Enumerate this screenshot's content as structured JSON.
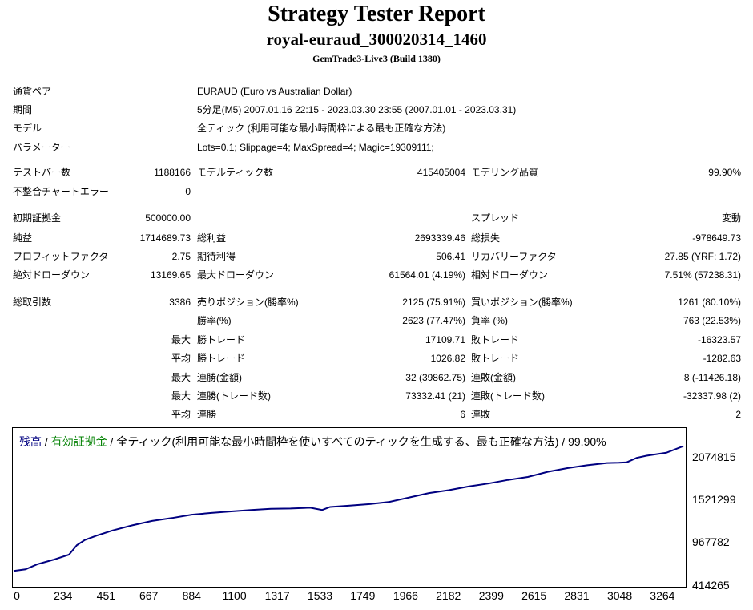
{
  "header": {
    "title": "Strategy Tester Report",
    "subtitle": "royal-euraud_300020314_1460",
    "build": "GemTrade3-Live3 (Build 1380)"
  },
  "info": [
    {
      "label": "通貨ペア",
      "value": "EURAUD (Euro vs Australian Dollar)"
    },
    {
      "label": "期間",
      "value": "5分足(M5) 2007.01.16 22:15 - 2023.03.30 23:55 (2007.01.01 - 2023.03.31)"
    },
    {
      "label": "モデル",
      "value": "全ティック (利用可能な最小時間枠による最も正確な方法)"
    },
    {
      "label": "パラメーター",
      "value": "Lots=0.1; Slippage=4; MaxSpread=4; Magic=19309111;"
    }
  ],
  "stats": {
    "bars_label": "テストバー数",
    "bars": "1188166",
    "ticks_label": "モデルティック数",
    "ticks": "415405004",
    "quality_label": "モデリング品質",
    "quality": "99.90%",
    "mismatch_label": "不整合チャートエラー",
    "mismatch": "0",
    "deposit_label": "初期証拠金",
    "deposit": "500000.00",
    "spread_label": "スプレッド",
    "spread": "変動",
    "net_label": "純益",
    "net": "1714689.73",
    "gross_profit_label": "総利益",
    "gross_profit": "2693339.46",
    "gross_loss_label": "総損失",
    "gross_loss": "-978649.73",
    "pf_label": "プロフィットファクタ",
    "pf": "2.75",
    "expected_label": "期待利得",
    "expected": "506.41",
    "recovery_label": "リカバリーファクタ",
    "recovery": "27.85 (YRF: 1.72)",
    "abs_dd_label": "絶対ドローダウン",
    "abs_dd": "13169.65",
    "max_dd_label": "最大ドローダウン",
    "max_dd": "61564.01 (4.19%)",
    "rel_dd_label": "相対ドローダウン",
    "rel_dd": "7.51% (57238.31)",
    "total_trades_label": "総取引数",
    "total_trades": "3386",
    "short_label": "売りポジション(勝率%)",
    "short": "2125 (75.91%)",
    "long_label": "買いポジション(勝率%)",
    "long": "1261 (80.10%)",
    "winrate_label": "勝率(%)",
    "winrate": "2623 (77.47%)",
    "lossrate_label": "負率 (%)",
    "lossrate": "763 (22.53%)",
    "max_label": "最大",
    "avg_label": "平均",
    "win_trade_label": "勝トレード",
    "loss_trade_label": "敗トレード",
    "max_win_trade": "17109.71",
    "max_loss_trade": "-16323.57",
    "avg_win_trade": "1026.82",
    "avg_loss_trade": "-1282.63",
    "consec_win_amt_label": "連勝(金額)",
    "consec_loss_amt_label": "連敗(金額)",
    "consec_win_amt": "32 (39862.75)",
    "consec_loss_amt": "8 (-11426.18)",
    "consec_win_cnt_label": "連勝(トレード数)",
    "consec_loss_cnt_label": "連敗(トレード数)",
    "consec_win_cnt": "73332.41 (21)",
    "consec_loss_cnt": "-32337.98 (2)",
    "avg_consec_win_label": "連勝",
    "avg_consec_loss_label": "連敗",
    "avg_consec_win": "6",
    "avg_consec_loss": "2"
  },
  "chart_legend": {
    "balance": "残高",
    "sep1": " / ",
    "equity": "有効証拠金",
    "sep2": " / ",
    "rest": "全ティック(利用可能な最小時間枠を使いすべてのティックを生成する、最も正確な方法) / 99.90%",
    "balance_color": "#000080",
    "equity_color": "#008000",
    "line_color": "#000080"
  },
  "chart_data": {
    "type": "line",
    "yticks": [
      "2074815",
      "1521299",
      "967782",
      "414265"
    ],
    "xticks": [
      "0",
      "234",
      "451",
      "667",
      "884",
      "1100",
      "1317",
      "1533",
      "1749",
      "1966",
      "2182",
      "2399",
      "2615",
      "2831",
      "3048",
      "3264"
    ],
    "ylim": [
      414265,
      2250000
    ],
    "xlim": [
      0,
      3386
    ],
    "series": [
      {
        "x": [
          0,
          60,
          120,
          200,
          280,
          320,
          360,
          420,
          500,
          600,
          700,
          800,
          900,
          1000,
          1100,
          1200,
          1300,
          1400,
          1500,
          1560,
          1600,
          1700,
          1800,
          1900,
          2000,
          2100,
          2200,
          2300,
          2400,
          2500,
          2600,
          2700,
          2800,
          2900,
          3000,
          3060,
          3100,
          3150,
          3200,
          3300,
          3386
        ],
        "y": [
          500000,
          520000,
          590000,
          650000,
          720000,
          850000,
          920000,
          980000,
          1050000,
          1120000,
          1180000,
          1220000,
          1265000,
          1290000,
          1310000,
          1330000,
          1345000,
          1350000,
          1360000,
          1330000,
          1370000,
          1390000,
          1410000,
          1440000,
          1500000,
          1560000,
          1600000,
          1650000,
          1690000,
          1740000,
          1780000,
          1850000,
          1900000,
          1940000,
          1970000,
          1975000,
          1980000,
          2040000,
          2070000,
          2110000,
          2200000
        ]
      }
    ]
  }
}
